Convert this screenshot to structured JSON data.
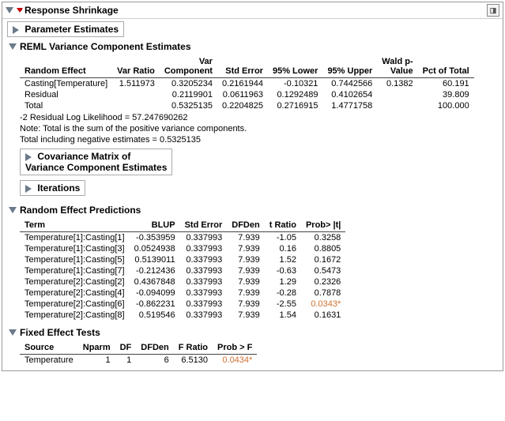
{
  "title": "Response Shrinkage",
  "sections": {
    "paramEst": "Parameter Estimates",
    "reml": "REML Variance Component Estimates",
    "covMatrix": "Covariance Matrix of\nVariance Component Estimates",
    "iterations": "Iterations",
    "randPred": "Random Effect Predictions",
    "fixedTests": "Fixed Effect Tests"
  },
  "reml": {
    "cols": [
      "Random Effect",
      "Var Ratio",
      "Var\nComponent",
      "Std Error",
      "95% Lower",
      "95% Upper",
      "Wald p-\nValue",
      "Pct of Total"
    ],
    "rows": [
      [
        "Casting[Temperature]",
        "1.511973",
        "0.3205234",
        "0.2161944",
        "-0.10321",
        "0.7442566",
        "0.1382",
        "60.191"
      ],
      [
        "Residual",
        "",
        "0.2119901",
        "0.0611963",
        "0.1292489",
        "0.4102654",
        "",
        "39.809"
      ],
      [
        "Total",
        "",
        "0.5325135",
        "0.2204825",
        "0.2716915",
        "1.4771758",
        "",
        "100.000"
      ]
    ],
    "notes": [
      " -2 Residual Log Likelihood =  57.247690262",
      "Note: Total is the sum of the positive variance components.",
      "Total including negative estimates =  0.5325135"
    ]
  },
  "randPred": {
    "cols": [
      "Term",
      "BLUP",
      "Std Error",
      "DFDen",
      "t Ratio",
      "Prob> |t|"
    ],
    "rows": [
      [
        "Temperature[1]:Casting[1]",
        "-0.353959",
        "0.337993",
        "7.939",
        "-1.05",
        "0.3258",
        false
      ],
      [
        "Temperature[1]:Casting[3]",
        "0.0524938",
        "0.337993",
        "7.939",
        "0.16",
        "0.8805",
        false
      ],
      [
        "Temperature[1]:Casting[5]",
        "0.5139011",
        "0.337993",
        "7.939",
        "1.52",
        "0.1672",
        false
      ],
      [
        "Temperature[1]:Casting[7]",
        "-0.212436",
        "0.337993",
        "7.939",
        "-0.63",
        "0.5473",
        false
      ],
      [
        "Temperature[2]:Casting[2]",
        "0.4367848",
        "0.337993",
        "7.939",
        "1.29",
        "0.2326",
        false
      ],
      [
        "Temperature[2]:Casting[4]",
        "-0.094099",
        "0.337993",
        "7.939",
        "-0.28",
        "0.7878",
        false
      ],
      [
        "Temperature[2]:Casting[6]",
        "-0.862231",
        "0.337993",
        "7.939",
        "-2.55",
        "0.0343*",
        true
      ],
      [
        "Temperature[2]:Casting[8]",
        "0.519546",
        "0.337993",
        "7.939",
        "1.54",
        "0.1631",
        false
      ]
    ]
  },
  "fixed": {
    "cols": [
      "Source",
      "Nparm",
      "DF",
      "DFDen",
      "F Ratio",
      "Prob > F"
    ],
    "rows": [
      [
        "Temperature",
        "1",
        "1",
        "6",
        "6.5130",
        "0.0434*",
        true
      ]
    ]
  }
}
